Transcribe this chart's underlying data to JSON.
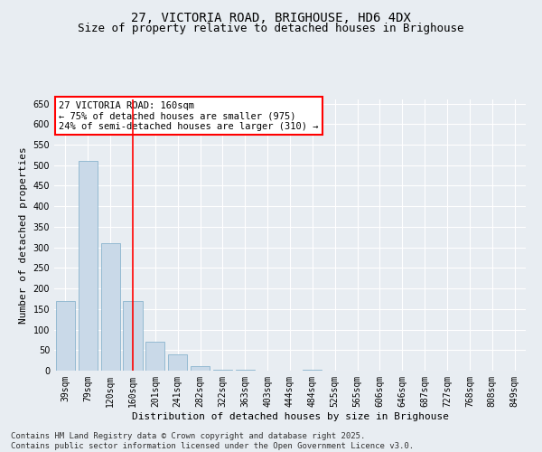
{
  "title_line1": "27, VICTORIA ROAD, BRIGHOUSE, HD6 4DX",
  "title_line2": "Size of property relative to detached houses in Brighouse",
  "xlabel": "Distribution of detached houses by size in Brighouse",
  "ylabel": "Number of detached properties",
  "categories": [
    "39sqm",
    "79sqm",
    "120sqm",
    "160sqm",
    "201sqm",
    "241sqm",
    "282sqm",
    "322sqm",
    "363sqm",
    "403sqm",
    "444sqm",
    "484sqm",
    "525sqm",
    "565sqm",
    "606sqm",
    "646sqm",
    "687sqm",
    "727sqm",
    "768sqm",
    "808sqm",
    "849sqm"
  ],
  "values": [
    170,
    510,
    310,
    170,
    70,
    40,
    10,
    3,
    2,
    1,
    0,
    2,
    0,
    0,
    0,
    0,
    0,
    0,
    0,
    1,
    0
  ],
  "bar_color": "#c9d9e8",
  "bar_edge_color": "#7aaac8",
  "vline_x": 3,
  "vline_color": "red",
  "annotation_text": "27 VICTORIA ROAD: 160sqm\n← 75% of detached houses are smaller (975)\n24% of semi-detached houses are larger (310) →",
  "annotation_box_color": "white",
  "annotation_box_edge": "red",
  "ylim": [
    0,
    660
  ],
  "yticks": [
    0,
    50,
    100,
    150,
    200,
    250,
    300,
    350,
    400,
    450,
    500,
    550,
    600,
    650
  ],
  "background_color": "#e8edf2",
  "grid_color": "white",
  "footer_line1": "Contains HM Land Registry data © Crown copyright and database right 2025.",
  "footer_line2": "Contains public sector information licensed under the Open Government Licence v3.0.",
  "title_fontsize": 10,
  "subtitle_fontsize": 9,
  "axis_label_fontsize": 8,
  "tick_fontsize": 7,
  "annotation_fontsize": 7.5,
  "footer_fontsize": 6.5
}
